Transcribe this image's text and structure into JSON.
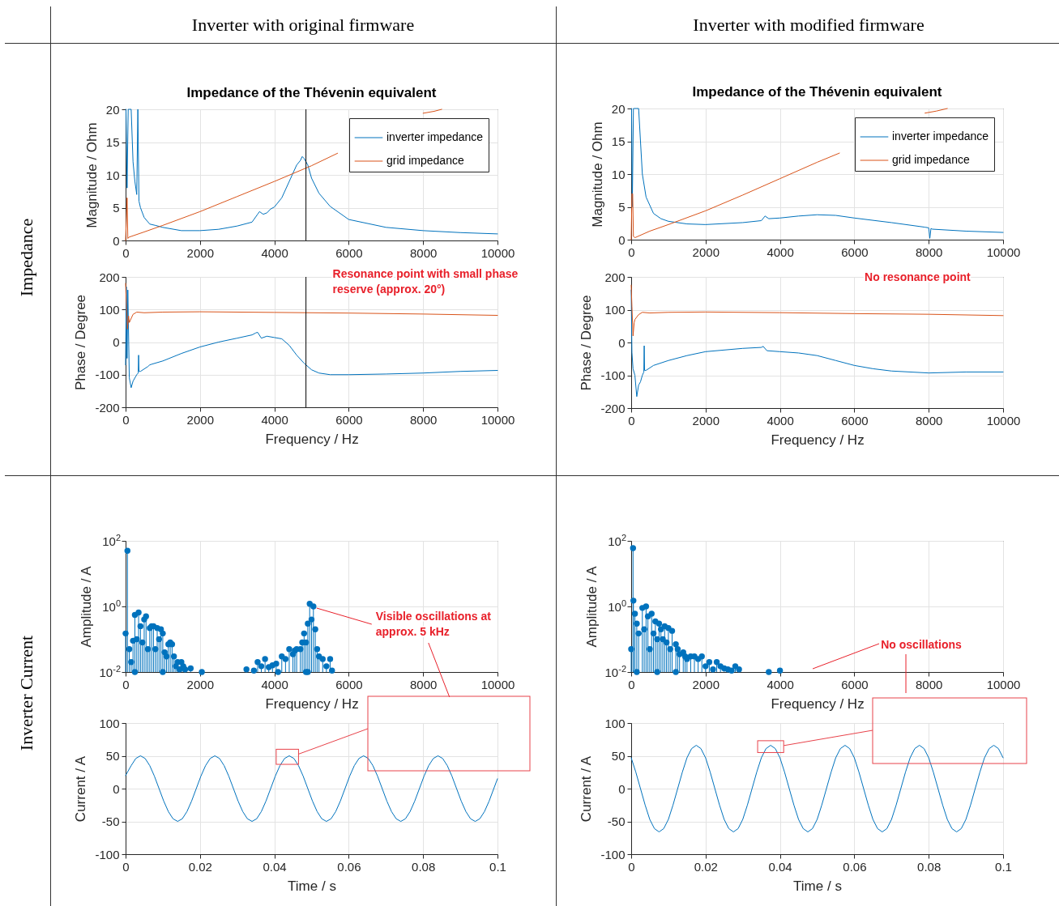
{
  "chart_data": [
    {
      "type": "other",
      "annotations": [
        "Inverter with original firmware",
        "Inverter with modified firmware",
        "Impedance",
        "Inverter Current"
      ]
    },
    {
      "type": "line",
      "title": "Impedance of the Thévenin equivalent",
      "ylabel": "Magnitude / Ohm",
      "xlim": [
        0,
        10000
      ],
      "xticks": [
        0,
        2000,
        4000,
        6000,
        8000,
        10000
      ],
      "ylim": [
        0,
        20
      ],
      "yticks": [
        0,
        5,
        10,
        15,
        20
      ],
      "grid": true,
      "legend": "top right",
      "series": [
        {
          "name": "inverter impedance",
          "color": "#0072bd",
          "x": [
            10,
            40,
            70,
            100,
            150,
            200,
            250,
            300,
            330,
            360,
            400,
            500,
            650,
            800,
            1000,
            1500,
            2000,
            2500,
            3000,
            3400,
            3550,
            3600,
            3700,
            3800,
            3900,
            4000,
            4200,
            4400,
            4600,
            4700,
            4750,
            4800,
            4900,
            5000,
            5200,
            5500,
            6000,
            7000,
            8000,
            9000,
            10000
          ],
          "values": [
            20,
            8,
            20,
            20,
            20,
            12,
            9,
            7,
            20,
            6,
            5,
            3.5,
            2.5,
            2.3,
            2,
            1.5,
            1.5,
            1.7,
            2.2,
            2.8,
            4,
            4.4,
            4,
            4.2,
            4.8,
            5.1,
            6.5,
            9,
            11.5,
            12.2,
            12.8,
            12.5,
            11.5,
            9.5,
            7.2,
            5.2,
            3.2,
            2,
            1.5,
            1.2,
            1
          ]
        },
        {
          "name": "grid impedance",
          "color": "#d95319",
          "x": [
            0,
            40,
            60,
            90,
            500,
            1000,
            2000,
            3000,
            4000,
            5000,
            5700,
            7000,
            8000,
            8300,
            8500
          ],
          "values": [
            0,
            6.5,
            0.3,
            0.5,
            1.3,
            2.3,
            4.4,
            6.7,
            9,
            11.4,
            13.3,
            null,
            19.4,
            19.7,
            20
          ]
        }
      ],
      "ref_lines": [
        {
          "axis": "x",
          "value": 4850,
          "color": "#000000"
        }
      ]
    },
    {
      "type": "line",
      "title": "Impedance of the Thévenin equivalent",
      "ylabel": "Magnitude / Ohm",
      "xlim": [
        0,
        10000
      ],
      "xticks": [
        0,
        2000,
        4000,
        6000,
        8000,
        10000
      ],
      "ylim": [
        0,
        20
      ],
      "yticks": [
        0,
        5,
        10,
        15,
        20
      ],
      "grid": true,
      "legend": "top right",
      "series": [
        {
          "name": "inverter impedance",
          "color": "#0072bd",
          "x": [
            10,
            30,
            60,
            100,
            150,
            200,
            300,
            400,
            600,
            800,
            1000,
            1500,
            2000,
            3000,
            3500,
            3600,
            3700,
            4000,
            4500,
            5000,
            5500,
            6000,
            7000,
            7900,
            8000,
            8030,
            8060,
            8100,
            9000,
            10000
          ],
          "values": [
            20,
            5,
            20,
            20,
            20,
            20,
            10,
            6.5,
            4,
            3.2,
            2.8,
            2.4,
            2.3,
            2.6,
            2.9,
            3.6,
            3.2,
            3.3,
            3.6,
            3.8,
            3.7,
            3.3,
            2.6,
            1.9,
            1.8,
            0.2,
            1.7,
            1.6,
            1.3,
            1.1
          ]
        },
        {
          "name": "grid impedance",
          "color": "#d95319",
          "x": [
            0,
            20,
            40,
            60,
            100,
            500,
            1000,
            2000,
            3000,
            4000,
            5000,
            5600,
            7000,
            7900,
            8200,
            8500
          ],
          "values": [
            0,
            7,
            7,
            0.5,
            0.3,
            1.3,
            2.3,
            4.4,
            6.8,
            9.3,
            11.8,
            13.2,
            null,
            19.3,
            19.6,
            20
          ]
        }
      ]
    },
    {
      "type": "line",
      "xlabel": "Frequency / Hz",
      "ylabel": "Phase / Degree",
      "xlim": [
        0,
        10000
      ],
      "xticks": [
        0,
        2000,
        4000,
        6000,
        8000,
        10000
      ],
      "ylim": [
        -200,
        200
      ],
      "yticks": [
        -200,
        -100,
        0,
        100,
        200
      ],
      "grid": true,
      "series": [
        {
          "color": "#0072bd",
          "x": [
            0,
            20,
            40,
            60,
            100,
            150,
            200,
            300,
            340,
            350,
            360,
            400,
            600,
            650,
            700,
            1000,
            1500,
            2000,
            2500,
            3000,
            3400,
            3500,
            3550,
            3650,
            3800,
            4000,
            4200,
            4400,
            4600,
            4800,
            5000,
            5200,
            5500,
            6000,
            7000,
            8000,
            9000,
            10000
          ],
          "values": [
            -70,
            170,
            -50,
            160,
            -110,
            -140,
            -120,
            -100,
            -95,
            -40,
            -90,
            -90,
            -75,
            -70,
            -68,
            -58,
            -35,
            -15,
            0,
            12,
            22,
            28,
            30,
            12,
            18,
            14,
            10,
            -10,
            -40,
            -65,
            -85,
            -95,
            -100,
            -100,
            -98,
            -95,
            -90,
            -87
          ]
        },
        {
          "color": "#d95319",
          "x": [
            0,
            20,
            50,
            80,
            100,
            200,
            300,
            500,
            1000,
            2000,
            4000,
            6000,
            8000,
            10000
          ],
          "values": [
            180,
            120,
            40,
            80,
            60,
            85,
            92,
            90,
            92,
            93,
            91,
            89,
            86,
            82
          ]
        }
      ],
      "ref_lines": [
        {
          "axis": "x",
          "value": 4850,
          "color": "#000000"
        }
      ],
      "annotations": [
        {
          "text": "Resonance point with small phase reserve (approx. 20°)",
          "x": 4850,
          "y": 200
        }
      ]
    },
    {
      "type": "line",
      "xlabel": "Frequency / Hz",
      "ylabel": "Phase / Degree",
      "xlim": [
        0,
        10000
      ],
      "xticks": [
        0,
        2000,
        4000,
        6000,
        8000,
        10000
      ],
      "ylim": [
        -200,
        200
      ],
      "yticks": [
        -200,
        -100,
        0,
        100,
        200
      ],
      "grid": true,
      "series": [
        {
          "color": "#0072bd",
          "x": [
            0,
            20,
            50,
            100,
            150,
            200,
            250,
            300,
            340,
            350,
            360,
            400,
            600,
            1000,
            1500,
            2000,
            3000,
            3500,
            3550,
            3650,
            4000,
            4500,
            5000,
            5500,
            6000,
            6500,
            7000,
            8000,
            9000,
            10000
          ],
          "values": [
            160,
            -30,
            -80,
            -100,
            -165,
            -130,
            -120,
            -100,
            -90,
            -10,
            -85,
            -85,
            -70,
            -55,
            -40,
            -28,
            -18,
            -15,
            -12,
            -25,
            -28,
            -32,
            -40,
            -55,
            -70,
            -80,
            -87,
            -93,
            -90,
            -90
          ]
        },
        {
          "color": "#d95319",
          "x": [
            0,
            20,
            50,
            80,
            100,
            200,
            300,
            500,
            1000,
            2000,
            4000,
            6000,
            8000,
            10000
          ],
          "values": [
            175,
            110,
            20,
            60,
            70,
            85,
            92,
            90,
            92,
            93,
            91,
            88,
            86,
            82
          ]
        }
      ],
      "annotations": [
        "No resonance point"
      ]
    },
    {
      "type": "lollipop",
      "xlabel": "Frequency / Hz",
      "ylabel": "Amplitude / A",
      "xlim": [
        0,
        10000
      ],
      "xticks": [
        0,
        2000,
        4000,
        6000,
        8000,
        10000
      ],
      "ylim": [
        0.01,
        100
      ],
      "yticks": [
        {
          "value": 0.01,
          "label": "10$^{-2}$"
        },
        {
          "value": 1,
          "label": "10$^{0}$"
        },
        {
          "value": 100,
          "label": "10$^{2}$"
        }
      ],
      "log": true,
      "grid": true,
      "marker": "circle",
      "series": [
        {
          "color": "#0072bd",
          "x": [
            0,
            50,
            100,
            150,
            200,
            250,
            250,
            300,
            350,
            400,
            450,
            500,
            550,
            600,
            650,
            700,
            750,
            800,
            850,
            900,
            950,
            1000,
            1000,
            1050,
            1100,
            1150,
            1200,
            1250,
            1300,
            1350,
            1400,
            1450,
            1500,
            1550,
            1600,
            1750,
            2050,
            3250,
            3450,
            3550,
            3650,
            3750,
            3850,
            3950,
            4050,
            4100,
            4200,
            4300,
            4400,
            4500,
            4550,
            4600,
            4700,
            4750,
            4800,
            4850,
            4850,
            4900,
            4900,
            4950,
            5000,
            5050,
            5100,
            5150,
            5200,
            5300,
            5400,
            5500,
            5550
          ],
          "values": [
            0.15,
            50,
            0.05,
            0.02,
            0.09,
            0.55,
            0.01,
            0.1,
            0.65,
            0.25,
            0.08,
            0.4,
            0.5,
            0.05,
            0.22,
            0.25,
            0.25,
            0.05,
            0.22,
            0.1,
            0.2,
            0.15,
            0.01,
            0.04,
            0.03,
            0.07,
            0.08,
            0.07,
            0.03,
            0.015,
            0.02,
            0.012,
            0.02,
            0.015,
            0.012,
            0.013,
            0.01,
            0.012,
            0.011,
            0.02,
            0.015,
            0.025,
            0.014,
            0.016,
            0.018,
            0.01,
            0.03,
            0.025,
            0.05,
            0.035,
            0.045,
            0.05,
            0.05,
            0.08,
            0.15,
            0.08,
            0.01,
            0.3,
            0.01,
            1.2,
            0.4,
            1,
            0.2,
            0.05,
            0.03,
            0.025,
            0.015,
            0.025,
            0.011
          ]
        }
      ],
      "annotations": [
        {
          "text": "Visible oscillations at approx. 5 kHz",
          "x": 5050,
          "y": 1
        }
      ]
    },
    {
      "type": "lollipop",
      "xlabel": "Frequency / Hz",
      "ylabel": "Amplitude / A",
      "xlim": [
        0,
        10000
      ],
      "xticks": [
        0,
        2000,
        4000,
        6000,
        8000,
        10000
      ],
      "ylim": [
        0.01,
        100
      ],
      "yticks": [
        {
          "value": 0.01,
          "label": "10$^{-2}$"
        },
        {
          "value": 1,
          "label": "10$^{0}$"
        },
        {
          "value": 100,
          "label": "10$^{2}$"
        }
      ],
      "log": true,
      "grid": true,
      "marker": "circle",
      "series": [
        {
          "color": "#0072bd",
          "x": [
            0,
            50,
            60,
            100,
            150,
            150,
            200,
            300,
            350,
            400,
            450,
            500,
            550,
            600,
            650,
            700,
            700,
            750,
            800,
            850,
            900,
            950,
            1000,
            1050,
            1100,
            1200,
            1200,
            1250,
            1300,
            1400,
            1450,
            1500,
            1600,
            1700,
            1800,
            1900,
            2000,
            2100,
            2200,
            2300,
            2400,
            2500,
            2600,
            2700,
            2800,
            2900,
            3700,
            4000
          ],
          "values": [
            0.05,
            60,
            1.5,
            0.6,
            0.3,
            0.01,
            0.15,
            0.9,
            0.2,
            1,
            0.5,
            0.05,
            0.6,
            0.15,
            0.35,
            0.1,
            0.01,
            0.3,
            0.2,
            0.1,
            0.25,
            0.08,
            0.22,
            0.05,
            0.18,
            0.07,
            0.01,
            0.05,
            0.035,
            0.04,
            0.03,
            0.025,
            0.03,
            0.03,
            0.025,
            0.03,
            0.015,
            0.02,
            0.012,
            0.02,
            0.015,
            0.013,
            0.012,
            0.011,
            0.015,
            0.012,
            0.01,
            0.011
          ]
        }
      ],
      "annotations": [
        "No oscillations"
      ]
    },
    {
      "type": "line",
      "xlabel": "Time / s",
      "ylabel": "Current / A",
      "xlim": [
        0,
        0.1
      ],
      "xticks": [
        0,
        0.02,
        0.04,
        0.06,
        0.08,
        0.1
      ],
      "ylim": [
        -100,
        100
      ],
      "yticks": [
        -100,
        -50,
        0,
        50,
        100
      ],
      "grid": true,
      "series": [
        {
          "color": "#0072bd",
          "x": [
            0,
            0.0015,
            0.00275,
            0.004,
            0.00525,
            0.0065,
            0.00775,
            0.009,
            0.01025,
            0.0115,
            0.01275,
            0.014,
            0.01525,
            0.0165,
            0.01775,
            0.019,
            0.02025,
            0.0215,
            0.02275,
            0.024,
            0.02525,
            0.0265,
            0.02775,
            0.029,
            0.03025,
            0.0315,
            0.03275,
            0.034,
            0.03525,
            0.0365,
            0.03775,
            0.039,
            0.04025,
            0.0415,
            0.04275,
            0.044,
            0.04525,
            0.0465,
            0.04775,
            0.049,
            0.05025,
            0.0515,
            0.05275,
            0.054,
            0.05525,
            0.0565,
            0.05775,
            0.059,
            0.06025,
            0.0615,
            0.06275,
            0.064,
            0.06525,
            0.0665,
            0.06775,
            0.069,
            0.07025,
            0.0715,
            0.07275,
            0.074,
            0.07525,
            0.0765,
            0.07775,
            0.079,
            0.08025,
            0.0815,
            0.08275,
            0.084,
            0.08525,
            0.0865,
            0.08775,
            0.089,
            0.09025,
            0.0915,
            0.09275,
            0.094,
            0.09525,
            0.0965,
            0.09775,
            0.099,
            0.1
          ],
          "values": [
            20,
            35,
            46,
            50,
            46,
            35,
            19,
            0,
            -19,
            -35,
            -46,
            -50,
            -46,
            -35,
            -19,
            0,
            19,
            35,
            46,
            50,
            46,
            35,
            19,
            0,
            -19,
            -35,
            -46,
            -50,
            -46,
            -35,
            -19,
            0,
            19,
            35,
            46,
            50,
            46,
            35,
            19,
            0,
            -19,
            -35,
            -46,
            -50,
            -46,
            -35,
            -19,
            0,
            19,
            35,
            46,
            50,
            46,
            35,
            19,
            0,
            -19,
            -35,
            -46,
            -50,
            -46,
            -35,
            -19,
            0,
            19,
            35,
            46,
            50,
            46,
            35,
            19,
            0,
            -19,
            -35,
            -46,
            -50,
            -46,
            -35,
            -19,
            0,
            15
          ]
        }
      ]
    },
    {
      "type": "line",
      "xlabel": "Time / s",
      "ylabel": "Current / A",
      "xlim": [
        0,
        0.1
      ],
      "xticks": [
        0,
        0.02,
        0.04,
        0.06,
        0.08,
        0.1
      ],
      "ylim": [
        -100,
        100
      ],
      "yticks": [
        -100,
        -50,
        0,
        50,
        100
      ],
      "grid": true,
      "series": [
        {
          "color": "#0072bd",
          "x": [
            0,
            0.00125,
            0.0025,
            0.00375,
            0.005,
            0.00625,
            0.0075,
            0.00875,
            0.01,
            0.01125,
            0.0125,
            0.01375,
            0.015,
            0.01625,
            0.0175,
            0.01875,
            0.02,
            0.02125,
            0.0225,
            0.02375,
            0.025,
            0.02625,
            0.0275,
            0.02875,
            0.03,
            0.03125,
            0.0325,
            0.03375,
            0.035,
            0.03625,
            0.0375,
            0.03875,
            0.04,
            0.04125,
            0.0425,
            0.04375,
            0.045,
            0.04625,
            0.0475,
            0.04875,
            0.05,
            0.05125,
            0.0525,
            0.05375,
            0.055,
            0.05625,
            0.0575,
            0.05875,
            0.06,
            0.06125,
            0.0625,
            0.06375,
            0.065,
            0.06625,
            0.0675,
            0.06875,
            0.07,
            0.07125,
            0.0725,
            0.07375,
            0.075,
            0.07625,
            0.0775,
            0.07875,
            0.08,
            0.08125,
            0.0825,
            0.08375,
            0.085,
            0.08625,
            0.0875,
            0.08875,
            0.09,
            0.09125,
            0.0925,
            0.09375,
            0.095,
            0.09625,
            0.0975,
            0.09875,
            0.1
          ],
          "values": [
            47,
            25,
            0,
            -25,
            -47,
            -61,
            -66,
            -61,
            -47,
            -25,
            0,
            25,
            47,
            61,
            66,
            61,
            47,
            25,
            0,
            -25,
            -47,
            -61,
            -66,
            -61,
            -47,
            -25,
            0,
            25,
            47,
            61,
            66,
            61,
            47,
            25,
            0,
            -25,
            -47,
            -61,
            -66,
            -61,
            -47,
            -25,
            0,
            25,
            47,
            61,
            66,
            61,
            47,
            25,
            0,
            -25,
            -47,
            -61,
            -66,
            -61,
            -47,
            -25,
            0,
            25,
            47,
            61,
            66,
            61,
            47,
            25,
            0,
            -25,
            -47,
            -61,
            -66,
            -61,
            -47,
            -25,
            0,
            25,
            47,
            61,
            66,
            61,
            47
          ]
        }
      ]
    }
  ]
}
